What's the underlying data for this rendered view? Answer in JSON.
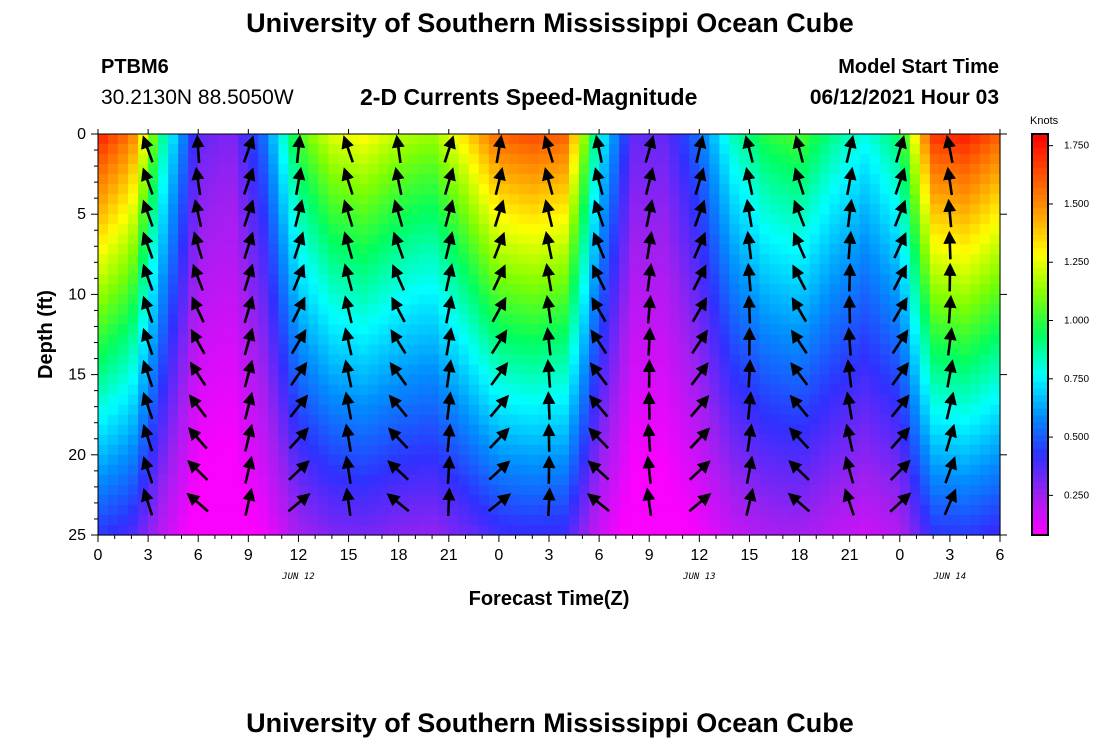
{
  "header": {
    "title": "University of Southern Mississippi Ocean Cube",
    "station_id": "PTBM6",
    "station_coords": "30.2130N  88.5050W",
    "subtitle": "2-D Currents Speed-Magnitude",
    "model_start_label": "Model Start Time",
    "model_start_value": "06/12/2021 Hour 03"
  },
  "footer": {
    "title": "University of Southern Mississippi Ocean Cube"
  },
  "chart_data": {
    "type": "heatmap",
    "xlabel": "Forecast Time(Z)",
    "ylabel": "Depth (ft)",
    "x_range_hours": [
      0,
      54
    ],
    "x_tick_labels": [
      "0",
      "3",
      "6",
      "9",
      "12",
      "15",
      "18",
      "21",
      "0",
      "3",
      "6",
      "9",
      "12",
      "15",
      "18",
      "21",
      "0",
      "3",
      "6"
    ],
    "date_labels": [
      {
        "hour": 12,
        "label": "JUN 12"
      },
      {
        "hour": 36,
        "label": "JUN 13"
      },
      {
        "hour": 51,
        "label": "JUN 14"
      }
    ],
    "y_range": [
      0,
      25
    ],
    "y_ticks": [
      0,
      5,
      10,
      15,
      20,
      25
    ],
    "y_inverted": true,
    "colorbar": {
      "unit": "Knots",
      "range": [
        0.08,
        1.8
      ],
      "ticks": [
        "0.250",
        "0.500",
        "0.750",
        "1.000",
        "1.250",
        "1.500",
        "1.750"
      ],
      "colors": [
        "#ff00ff",
        "#a020f0",
        "#3030ff",
        "#0090ff",
        "#00ffff",
        "#00ff60",
        "#80ff00",
        "#ffff00",
        "#ffa000",
        "#ff5000",
        "#ff0000"
      ]
    },
    "surface_speed_profile": {
      "hours": [
        0,
        2,
        4,
        6,
        8,
        10,
        12,
        14,
        16,
        18,
        20,
        22,
        24,
        26,
        28,
        30,
        32,
        34,
        36,
        38,
        40,
        42,
        44,
        46,
        48,
        50,
        52,
        54
      ],
      "surface_speed_knots": [
        1.75,
        1.55,
        0.85,
        0.35,
        0.3,
        0.55,
        1.05,
        1.25,
        1.3,
        1.2,
        1.15,
        1.35,
        1.6,
        1.65,
        1.6,
        0.8,
        0.35,
        0.35,
        0.55,
        0.85,
        1.0,
        1.05,
        0.9,
        0.8,
        0.95,
        1.7,
        1.75,
        1.6
      ]
    }
  }
}
